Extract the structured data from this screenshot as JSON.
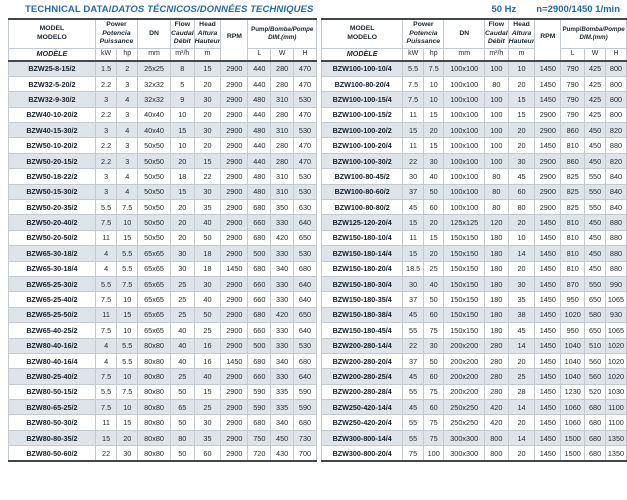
{
  "header": {
    "title_en": "TECHNICAL DATA/",
    "title_intl": "DATOS TÉCNICOS/DONNÉES TECHNIQUES",
    "frequency": "50 Hz",
    "speed": "n=2900/1450 1/min"
  },
  "colors": {
    "accent_blue": "#1e6cb2",
    "row_shade": "#dfe4ea",
    "rule_dark": "#43484e",
    "grid_light": "#c3c9d0"
  },
  "thead": {
    "model_l1": "MODEL",
    "model_l2": "MODELO",
    "model_l3": "MODÈLE",
    "power_l1": "Power",
    "power_l2": "Potencia",
    "power_l3": "Puissance",
    "dn": "DN",
    "flow_l1": "Flow",
    "flow_l2": "Caudal",
    "flow_l3": "Débit",
    "head_l1": "Head",
    "head_l2": "Altura",
    "head_l3": "Hauteur",
    "rpm": "RPM",
    "dim_en": "Pump/",
    "dim_intl": "Bomba/Pompe",
    "dim_l2": "DIM.(mm)",
    "unit_kw": "kW",
    "unit_hp": "hp",
    "unit_mm": "mm",
    "unit_flow": "m³/h",
    "unit_m": "m",
    "unit_l": "L",
    "unit_w": "W",
    "unit_h": "H"
  },
  "tables": {
    "left": {
      "rows": [
        [
          "BZW25-8-15/2",
          "1.5",
          "2",
          "25x25",
          "8",
          "15",
          "2900",
          "440",
          "280",
          "470"
        ],
        [
          "BZW32-5-20/2",
          "2.2",
          "3",
          "32x32",
          "5",
          "20",
          "2900",
          "440",
          "280",
          "470"
        ],
        [
          "BZW32-9-30/2",
          "3",
          "4",
          "32x32",
          "9",
          "30",
          "2900",
          "480",
          "310",
          "530"
        ],
        [
          "BZW40-10-20/2",
          "2.2",
          "3",
          "40x40",
          "10",
          "20",
          "2900",
          "440",
          "280",
          "470"
        ],
        [
          "BZW40-15-30/2",
          "3",
          "4",
          "40x40",
          "15",
          "30",
          "2900",
          "480",
          "310",
          "530"
        ],
        [
          "BZW50-10-20/2",
          "2.2",
          "3",
          "50x50",
          "10",
          "20",
          "2900",
          "440",
          "280",
          "470"
        ],
        [
          "BZW50-20-15/2",
          "2.2",
          "3",
          "50x50",
          "20",
          "15",
          "2900",
          "440",
          "280",
          "470"
        ],
        [
          "BZW50-18-22/2",
          "3",
          "4",
          "50x50",
          "18",
          "22",
          "2900",
          "480",
          "310",
          "530"
        ],
        [
          "BZW50-15-30/2",
          "3",
          "4",
          "50x50",
          "15",
          "30",
          "2900",
          "480",
          "310",
          "530"
        ],
        [
          "BZW50-20-35/2",
          "5.5",
          "7.5",
          "50x50",
          "20",
          "35",
          "2900",
          "680",
          "350",
          "630"
        ],
        [
          "BZW50-20-40/2",
          "7.5",
          "10",
          "50x50",
          "20",
          "40",
          "2900",
          "660",
          "330",
          "640"
        ],
        [
          "BZW50-20-50/2",
          "11",
          "15",
          "50x50",
          "20",
          "50",
          "2900",
          "680",
          "420",
          "650"
        ],
        [
          "BZW65-30-18/2",
          "4",
          "5.5",
          "65x65",
          "30",
          "18",
          "2900",
          "500",
          "330",
          "530"
        ],
        [
          "BZW65-30-18/4",
          "4",
          "5.5",
          "65x65",
          "30",
          "18",
          "1450",
          "680",
          "340",
          "680"
        ],
        [
          "BZW65-25-30/2",
          "5.5",
          "7.5",
          "65x65",
          "25",
          "30",
          "2900",
          "660",
          "330",
          "640"
        ],
        [
          "BZW65-25-40/2",
          "7.5",
          "10",
          "65x65",
          "25",
          "40",
          "2900",
          "660",
          "330",
          "640"
        ],
        [
          "BZW65-25-50/2",
          "11",
          "15",
          "65x65",
          "25",
          "50",
          "2900",
          "680",
          "420",
          "650"
        ],
        [
          "BZW65-40-25/2",
          "7.5",
          "10",
          "65x65",
          "40",
          "25",
          "2900",
          "660",
          "330",
          "640"
        ],
        [
          "BZW80-40-16/2",
          "4",
          "5.5",
          "80x80",
          "40",
          "16",
          "2900",
          "500",
          "330",
          "530"
        ],
        [
          "BZW80-40-16/4",
          "4",
          "5.5",
          "80x80",
          "40",
          "16",
          "1450",
          "680",
          "340",
          "680"
        ],
        [
          "BZW80-25-40/2",
          "7.5",
          "10",
          "80x80",
          "25",
          "40",
          "2900",
          "660",
          "330",
          "640"
        ],
        [
          "BZW80-50-15/2",
          "5.5",
          "7.5",
          "80x80",
          "50",
          "15",
          "2900",
          "590",
          "335",
          "590"
        ],
        [
          "BZW80-65-25/2",
          "7.5",
          "10",
          "80x80",
          "65",
          "25",
          "2900",
          "590",
          "335",
          "590"
        ],
        [
          "BZW80-50-30/2",
          "11",
          "15",
          "80x80",
          "50",
          "30",
          "2900",
          "680",
          "340",
          "680"
        ],
        [
          "BZW80-80-35/2",
          "15",
          "20",
          "80x80",
          "80",
          "35",
          "2900",
          "750",
          "450",
          "730"
        ],
        [
          "BZW80-50-60/2",
          "22",
          "30",
          "80x80",
          "50",
          "60",
          "2900",
          "720",
          "430",
          "700"
        ]
      ]
    },
    "right": {
      "rows": [
        [
          "BZW100-100-10/4",
          "5.5",
          "7.5",
          "100x100",
          "100",
          "10",
          "1450",
          "790",
          "425",
          "800"
        ],
        [
          "BZW100-80-20/4",
          "7.5",
          "10",
          "100x100",
          "80",
          "20",
          "1450",
          "790",
          "425",
          "800"
        ],
        [
          "BZW100-100-15/4",
          "7.5",
          "10",
          "100x100",
          "100",
          "15",
          "1450",
          "790",
          "425",
          "800"
        ],
        [
          "BZW100-100-15/2",
          "11",
          "15",
          "100x100",
          "100",
          "15",
          "2900",
          "790",
          "425",
          "800"
        ],
        [
          "BZW100-100-20/2",
          "15",
          "20",
          "100x100",
          "100",
          "20",
          "2900",
          "860",
          "450",
          "820"
        ],
        [
          "BZW100-100-20/4",
          "11",
          "15",
          "100x100",
          "100",
          "20",
          "1450",
          "810",
          "450",
          "880"
        ],
        [
          "BZW100-100-30/2",
          "22",
          "30",
          "100x100",
          "100",
          "30",
          "2900",
          "860",
          "450",
          "820"
        ],
        [
          "BZW100-80-45/2",
          "30",
          "40",
          "100x100",
          "80",
          "45",
          "2900",
          "825",
          "550",
          "840"
        ],
        [
          "BZW100-80-60/2",
          "37",
          "50",
          "100x100",
          "80",
          "60",
          "2900",
          "825",
          "550",
          "840"
        ],
        [
          "BZW100-80-80/2",
          "45",
          "60",
          "100x100",
          "80",
          "80",
          "2900",
          "825",
          "550",
          "840"
        ],
        [
          "BZW125-120-20/4",
          "15",
          "20",
          "125x125",
          "120",
          "20",
          "1450",
          "810",
          "450",
          "880"
        ],
        [
          "BZW150-180-10/4",
          "11",
          "15",
          "150x150",
          "180",
          "10",
          "1450",
          "810",
          "450",
          "880"
        ],
        [
          "BZW150-180-14/4",
          "15",
          "20",
          "150x150",
          "180",
          "14",
          "1450",
          "810",
          "450",
          "880"
        ],
        [
          "BZW150-180-20/4",
          "18.5",
          "25",
          "150x150",
          "180",
          "20",
          "1450",
          "810",
          "450",
          "880"
        ],
        [
          "BZW150-180-30/4",
          "30",
          "40",
          "150x150",
          "180",
          "30",
          "1450",
          "870",
          "550",
          "990"
        ],
        [
          "BZW150-180-35/4",
          "37",
          "50",
          "150x150",
          "180",
          "35",
          "1450",
          "950",
          "650",
          "1065"
        ],
        [
          "BZW150-180-38/4",
          "45",
          "60",
          "150x150",
          "180",
          "38",
          "1450",
          "1020",
          "580",
          "930"
        ],
        [
          "BZW150-180-45/4",
          "55",
          "75",
          "150x150",
          "180",
          "45",
          "1450",
          "950",
          "650",
          "1065"
        ],
        [
          "BZW200-280-14/4",
          "22",
          "30",
          "200x200",
          "280",
          "14",
          "1450",
          "1040",
          "510",
          "1020"
        ],
        [
          "BZW200-280-20/4",
          "37",
          "50",
          "200x200",
          "280",
          "20",
          "1450",
          "1040",
          "560",
          "1020"
        ],
        [
          "BZW200-280-25/4",
          "45",
          "60",
          "200x200",
          "280",
          "25",
          "1450",
          "1040",
          "560",
          "1020"
        ],
        [
          "BZW200-280-28/4",
          "55",
          "75",
          "200x200",
          "280",
          "28",
          "1450",
          "1230",
          "520",
          "1030"
        ],
        [
          "BZW250-420-14/4",
          "45",
          "60",
          "250x250",
          "420",
          "14",
          "1450",
          "1060",
          "680",
          "1100"
        ],
        [
          "BZW250-420-20/4",
          "55",
          "75",
          "250x250",
          "420",
          "20",
          "1450",
          "1060",
          "680",
          "1100"
        ],
        [
          "BZW300-800-14/4",
          "55",
          "75",
          "300x300",
          "800",
          "14",
          "1450",
          "1500",
          "680",
          "1350"
        ],
        [
          "BZW300-800-20/4",
          "75",
          "100",
          "300x300",
          "800",
          "20",
          "1450",
          "1500",
          "680",
          "1350"
        ]
      ]
    }
  }
}
